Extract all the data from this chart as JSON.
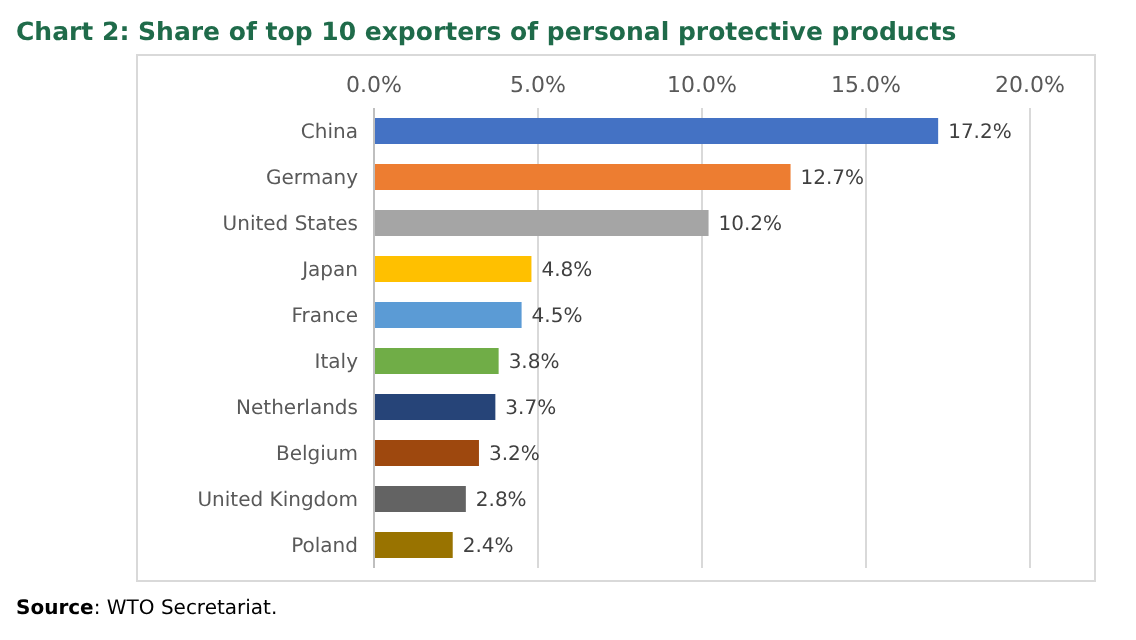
{
  "chart_data": {
    "type": "bar",
    "orientation": "horizontal",
    "title": "Chart 2: Share of top 10 exporters of personal protective products",
    "categories": [
      "China",
      "Germany",
      "United States",
      "Japan",
      "France",
      "Italy",
      "Netherlands",
      "Belgium",
      "United Kingdom",
      "Poland"
    ],
    "values": [
      17.2,
      12.7,
      10.2,
      4.8,
      4.5,
      3.8,
      3.7,
      3.2,
      2.8,
      2.4
    ],
    "value_labels": [
      "17.2%",
      "12.7%",
      "10.2%",
      "4.8%",
      "4.5%",
      "3.8%",
      "3.7%",
      "3.2%",
      "2.8%",
      "2.4%"
    ],
    "colors": [
      "#4472c4",
      "#ed7d31",
      "#a5a5a5",
      "#ffc000",
      "#5b9bd5",
      "#70ad47",
      "#264478",
      "#9e480e",
      "#636363",
      "#997300"
    ],
    "xlim": [
      0,
      20
    ],
    "xticks": [
      {
        "value": 0,
        "label": "0.0%"
      },
      {
        "value": 5,
        "label": "5.0%"
      },
      {
        "value": 10,
        "label": "10.0%"
      },
      {
        "value": 15,
        "label": "15.0%"
      },
      {
        "value": 20,
        "label": "20.0%"
      }
    ],
    "grid": "x",
    "annotations": [
      "Source: WTO Secretariat."
    ]
  }
}
